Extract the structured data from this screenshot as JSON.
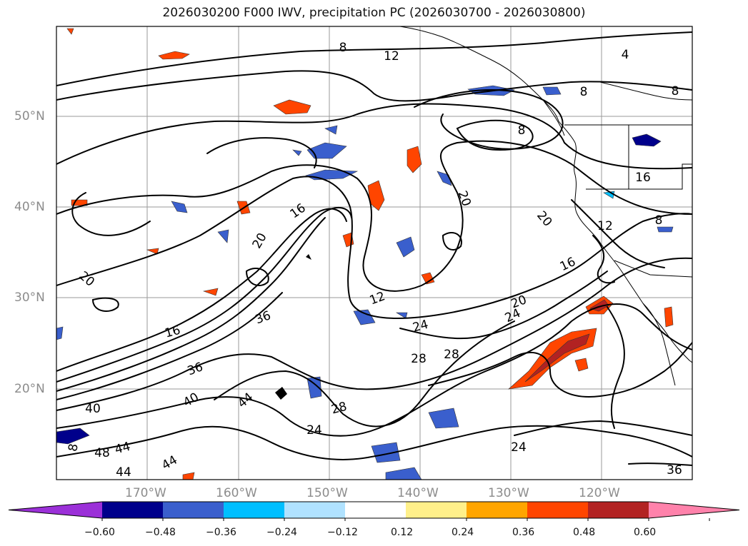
{
  "title": "2026030200 F000 IWV, precipitation PC (2026030700 - 2026030800)",
  "lon_ticks": [
    {
      "label": "170°W",
      "lon": -170
    },
    {
      "label": "160°W",
      "lon": -160
    },
    {
      "label": "150°W",
      "lon": -150
    },
    {
      "label": "140°W",
      "lon": -140
    },
    {
      "label": "130°W",
      "lon": -130
    },
    {
      "label": "120°W",
      "lon": -120
    }
  ],
  "lat_ticks": [
    {
      "label": "50°N",
      "lat": 50
    },
    {
      "label": "40°N",
      "lat": 40
    },
    {
      "label": "30°N",
      "lat": 30
    },
    {
      "label": "20°N",
      "lat": 20
    }
  ],
  "colorbar": {
    "ticks": [
      "−0.60",
      "−0.48",
      "−0.36",
      "−0.24",
      "−0.12",
      "0.12",
      "0.24",
      "0.36",
      "0.48",
      "0.60"
    ],
    "colors": [
      "#9b30d8",
      "#00008b",
      "#3a5fcd",
      "#00bfff",
      "#b0e2ff",
      "#ffffff",
      "#fff08a",
      "#ffa500",
      "#ff4500",
      "#b22222",
      "#ff82ab"
    ]
  },
  "contour_labels": [
    {
      "text": "8"
    },
    {
      "text": "12"
    },
    {
      "text": "4"
    },
    {
      "text": "8"
    },
    {
      "text": "8"
    },
    {
      "text": "8"
    },
    {
      "text": "16"
    },
    {
      "text": "20"
    },
    {
      "text": "16"
    },
    {
      "text": "20"
    },
    {
      "text": "20"
    },
    {
      "text": "8"
    },
    {
      "text": "12"
    },
    {
      "text": "12"
    },
    {
      "text": "16"
    },
    {
      "text": "20"
    },
    {
      "text": "24"
    },
    {
      "text": "16"
    },
    {
      "text": "20"
    },
    {
      "text": "36"
    },
    {
      "text": "24"
    },
    {
      "text": "28"
    },
    {
      "text": "28"
    },
    {
      "text": "36"
    },
    {
      "text": "40"
    },
    {
      "text": "44"
    },
    {
      "text": "40"
    },
    {
      "text": "28"
    },
    {
      "text": "24"
    },
    {
      "text": "48"
    },
    {
      "text": "44"
    },
    {
      "text": "44"
    },
    {
      "text": "44"
    },
    {
      "text": "24"
    },
    {
      "text": "36"
    },
    {
      "text": "8"
    }
  ]
}
